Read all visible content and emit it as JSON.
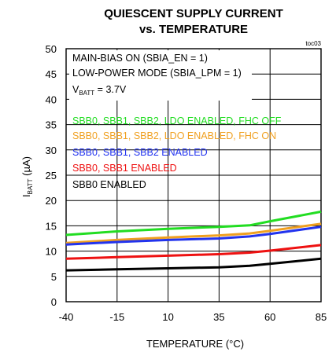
{
  "chart_data": {
    "type": "line",
    "title_line1": "QUIESCENT SUPPLY CURRENT",
    "title_line2": "vs. TEMPERATURE",
    "figure_id": "toc03",
    "xlabel": "TEMPERATURE (°C)",
    "ylabel_prefix": "I",
    "ylabel_sub": "BATT",
    "ylabel_unit": " (µA)",
    "xlim": [
      -40,
      85
    ],
    "ylim": [
      0,
      50
    ],
    "xticks": [
      -40,
      -15,
      10,
      35,
      60,
      85
    ],
    "yticks": [
      0,
      5,
      10,
      15,
      20,
      25,
      30,
      35,
      40,
      45,
      50
    ],
    "grid": true,
    "conditions": {
      "line1": "MAIN-BIAS ON (SBIA_EN = 1)",
      "line2": "LOW-POWER MODE (SBIA_LPM = 1)",
      "line3_prefix": "V",
      "line3_sub": "BATT",
      "line3_suffix": " = 3.7V"
    },
    "x": [
      -40,
      -15,
      10,
      35,
      50,
      60,
      85
    ],
    "series": [
      {
        "name": "SBB0, SBB1, SBB2, LDO ENABLED, FHC OFF",
        "color": "#22dd22",
        "values": [
          13.2,
          13.9,
          14.4,
          14.8,
          15.1,
          15.9,
          17.8
        ]
      },
      {
        "name": "SBB0, SBB1, SBB2, LDO ENABLED, FHC ON",
        "color": "#f0a020",
        "values": [
          11.6,
          12.2,
          12.7,
          13.1,
          13.5,
          14.0,
          15.4
        ]
      },
      {
        "name": "SBB0, SBB1, SBB2 ENABLED",
        "color": "#2233ee",
        "values": [
          11.3,
          11.8,
          12.2,
          12.5,
          12.9,
          13.4,
          14.8
        ]
      },
      {
        "name": "SBB0, SBB1 ENABLED",
        "color": "#ee1111",
        "values": [
          8.5,
          8.8,
          9.1,
          9.4,
          9.7,
          10.1,
          11.2
        ]
      },
      {
        "name": "SBB0 ENABLED",
        "color": "#000000",
        "values": [
          6.2,
          6.4,
          6.6,
          6.8,
          7.1,
          7.5,
          8.5
        ]
      }
    ]
  }
}
